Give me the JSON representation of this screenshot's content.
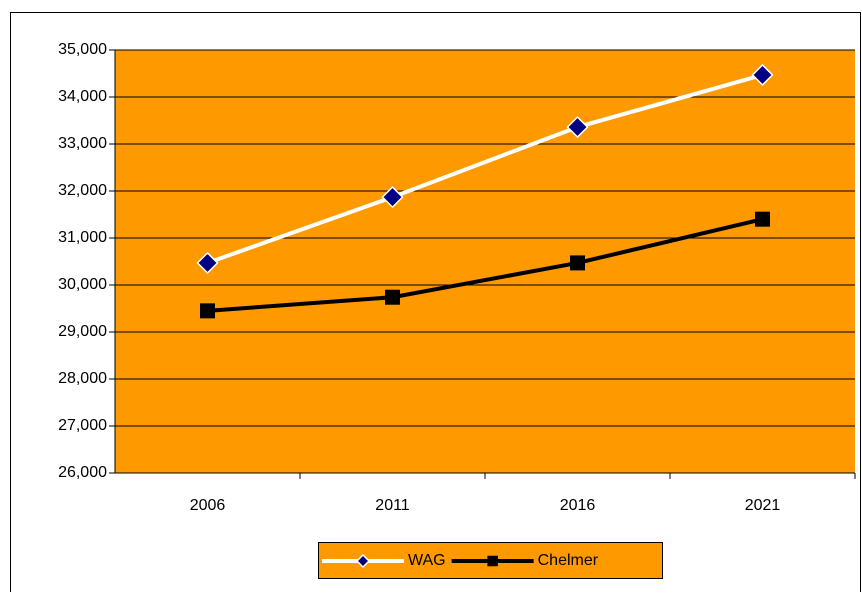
{
  "chart_data": {
    "type": "line",
    "categories": [
      "2006",
      "2011",
      "2016",
      "2021"
    ],
    "series": [
      {
        "name": "WAG",
        "color": "#ffffff",
        "marker_color": "#000080",
        "marker": "diamond",
        "values": [
          30470,
          31870,
          33360,
          34470
        ]
      },
      {
        "name": "Chelmer",
        "color": "#000000",
        "marker_color": "#000000",
        "marker": "square",
        "values": [
          29450,
          29740,
          30470,
          31400
        ]
      }
    ],
    "ylim": [
      26000,
      35000
    ],
    "yticks": [
      {
        "value": 26000,
        "label": "26,000"
      },
      {
        "value": 27000,
        "label": "27,000"
      },
      {
        "value": 28000,
        "label": "28,000"
      },
      {
        "value": 29000,
        "label": "29,000"
      },
      {
        "value": 30000,
        "label": "30,000"
      },
      {
        "value": 31000,
        "label": "31,000"
      },
      {
        "value": 32000,
        "label": "32,000"
      },
      {
        "value": 33000,
        "label": "33,000"
      },
      {
        "value": 34000,
        "label": "34,000"
      },
      {
        "value": 35000,
        "label": "35,000"
      }
    ],
    "grid": true,
    "plot_background": "#ff9900",
    "legend": "bottom"
  }
}
